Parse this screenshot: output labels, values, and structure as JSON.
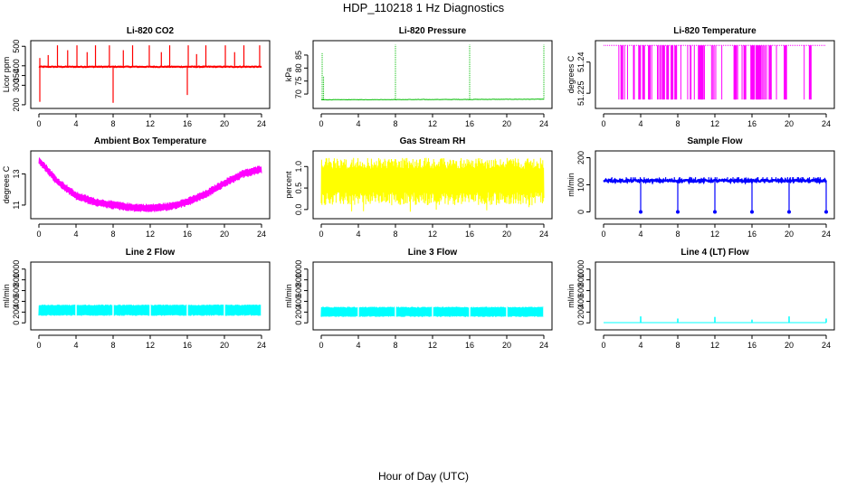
{
  "figure": {
    "title": "HDP_110218  1 Hz Diagnostics",
    "xlabel": "Hour of Day (UTC)"
  },
  "chart_data": [
    {
      "type": "line",
      "title": "Li-820 CO2",
      "ylabel": "Licor ppm",
      "color": "#ff0000",
      "xlim": [
        0,
        24
      ],
      "ylim": [
        195,
        515
      ],
      "xticks": [
        "0",
        "4",
        "8",
        "12",
        "16",
        "20",
        "24"
      ],
      "yticks": [
        200,
        300,
        350,
        400,
        500
      ],
      "baseline": 395,
      "noise": 4,
      "spikes": [
        [
          1.0,
          455
        ],
        [
          2.0,
          505
        ],
        [
          3.1,
          480
        ],
        [
          4.1,
          505
        ],
        [
          5.2,
          470
        ],
        [
          6.1,
          505
        ],
        [
          7.6,
          505
        ],
        [
          8.0,
          210
        ],
        [
          9.1,
          480
        ],
        [
          10.1,
          505
        ],
        [
          11.9,
          505
        ],
        [
          13.2,
          470
        ],
        [
          14.1,
          505
        ],
        [
          16.0,
          250
        ],
        [
          16.1,
          505
        ],
        [
          17.0,
          460
        ],
        [
          18.0,
          505
        ],
        [
          20.1,
          505
        ],
        [
          21.1,
          470
        ],
        [
          22.1,
          505
        ],
        [
          23.8,
          505
        ]
      ],
      "start": [
        [
          0,
          215
        ],
        [
          0,
          440
        ]
      ]
    },
    {
      "type": "line",
      "title": "Li-820 Pressure",
      "ylabel": "kPa",
      "color": "#00bb00",
      "xlim": [
        0,
        24
      ],
      "ylim": [
        65.5,
        89.5
      ],
      "xticks": [
        "0",
        "4",
        "8",
        "12",
        "16",
        "20",
        "24"
      ],
      "yticks": [
        70,
        75,
        80,
        85
      ],
      "baseline": [
        [
          0,
          67.8
        ],
        [
          24,
          68.0
        ]
      ],
      "noise": 0.15,
      "spikes": [
        [
          0.1,
          86.0
        ],
        [
          0.25,
          77.0
        ],
        [
          8.0,
          89.0
        ],
        [
          16.0,
          89.0
        ],
        [
          24.0,
          89.0
        ]
      ]
    },
    {
      "type": "line",
      "title": "Li-820 Temperature",
      "ylabel": "degrees C",
      "color": "#ff00ff",
      "xlim": [
        0,
        24
      ],
      "ylim": [
        51.219,
        51.249
      ],
      "xticks": [
        "0",
        "4",
        "8",
        "12",
        "16",
        "20",
        "24"
      ],
      "yticks": [
        51.225,
        51.24
      ],
      "baseline": 51.248,
      "low": 51.222
    },
    {
      "type": "line",
      "title": "Ambient Box Temperature",
      "ylabel": "degrees C",
      "color": "#ff00ff",
      "xlim": [
        0,
        24
      ],
      "ylim": [
        10.3,
        14.3
      ],
      "xticks": [
        "0",
        "4",
        "8",
        "12",
        "16",
        "20",
        "24"
      ],
      "yticks": [
        11,
        13
      ],
      "trend": [
        [
          0,
          13.9
        ],
        [
          2,
          12.5
        ],
        [
          4,
          11.6
        ],
        [
          6,
          11.2
        ],
        [
          8,
          11.0
        ],
        [
          10,
          10.85
        ],
        [
          12,
          10.8
        ],
        [
          14,
          10.9
        ],
        [
          16,
          11.2
        ],
        [
          18,
          11.7
        ],
        [
          20,
          12.4
        ],
        [
          22,
          13.0
        ],
        [
          24,
          13.3
        ]
      ],
      "band": 0.28
    },
    {
      "type": "line",
      "title": "Gas Stream RH",
      "ylabel": "percent",
      "color": "#ffff00",
      "xlim": [
        0,
        24
      ],
      "ylim": [
        -0.15,
        1.3
      ],
      "xticks": [
        "0",
        "4",
        "8",
        "12",
        "16",
        "20",
        "24"
      ],
      "yticks": [
        "0.0",
        "0.5",
        "1.0"
      ],
      "ytickvals": [
        0.0,
        0.5,
        1.0
      ],
      "range": [
        0.1,
        1.2
      ],
      "min_dip": -0.1
    },
    {
      "type": "line",
      "title": "Sample Flow",
      "ylabel": "ml/min",
      "color": "#0000ff",
      "xlim": [
        0,
        24
      ],
      "ylim": [
        -15,
        215
      ],
      "xticks": [
        "0",
        "4",
        "8",
        "12",
        "16",
        "20",
        "24"
      ],
      "yticks": [
        0,
        100,
        200
      ],
      "baseline": 115,
      "upper": 128,
      "dips": [
        4.0,
        8.0,
        12.0,
        16.0,
        20.0,
        24.0
      ],
      "dip_value": 0
    },
    {
      "type": "line",
      "title": "Line 2 Flow",
      "ylabel": "ml/min",
      "color": "#00ffff",
      "xlim": [
        0,
        24
      ],
      "ylim": [
        -80,
        1080
      ],
      "xticks": [
        "0",
        "4",
        "8",
        "12",
        "16",
        "20",
        "24"
      ],
      "yticks": [
        0,
        200,
        400,
        600,
        800,
        1000
      ],
      "range": [
        130,
        340
      ],
      "gaps": [
        4.0,
        8.0,
        12.0,
        16.0,
        20.0,
        24.0
      ]
    },
    {
      "type": "line",
      "title": "Line 3 Flow",
      "ylabel": "ml/min",
      "color": "#00ffff",
      "xlim": [
        0,
        24
      ],
      "ylim": [
        -80,
        1080
      ],
      "xticks": [
        "0",
        "4",
        "8",
        "12",
        "16",
        "20",
        "24"
      ],
      "yticks": [
        0,
        200,
        400,
        600,
        800,
        1000
      ],
      "range": [
        110,
        300
      ],
      "gaps": [
        4.0,
        8.0,
        12.0,
        16.0,
        20.0,
        24.0
      ]
    },
    {
      "type": "line",
      "title": "Line 4 (LT) Flow",
      "ylabel": "ml/min",
      "color": "#00ffff",
      "xlim": [
        0,
        24
      ],
      "ylim": [
        -80,
        1080
      ],
      "xticks": [
        "0",
        "4",
        "8",
        "12",
        "16",
        "20",
        "24"
      ],
      "yticks": [
        0,
        200,
        400,
        600,
        800,
        1000
      ],
      "baseline": 5,
      "spikes": [
        [
          4.0,
          120
        ],
        [
          8.0,
          80
        ],
        [
          12.0,
          110
        ],
        [
          16.0,
          60
        ],
        [
          20.0,
          120
        ],
        [
          24.0,
          80
        ]
      ]
    }
  ]
}
